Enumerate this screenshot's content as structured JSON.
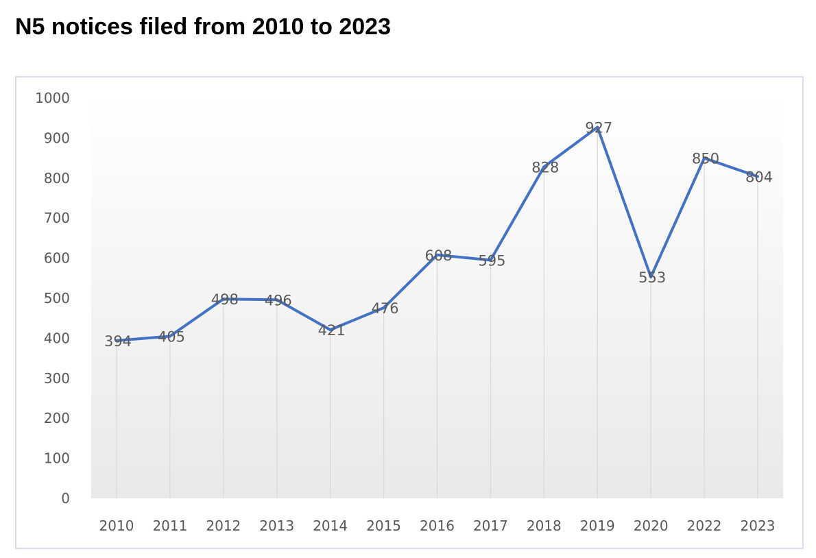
{
  "title": "N5 notices filed from 2010 to 2023",
  "chart_data": {
    "type": "line",
    "title": "N5 notices filed from 2010 to 2023",
    "categories": [
      "2010",
      "2011",
      "2012",
      "2013",
      "2014",
      "2015",
      "2016",
      "2017",
      "2018",
      "2019",
      "2020",
      "2022",
      "2023"
    ],
    "series": [
      {
        "values": [
          394,
          405,
          498,
          496,
          421,
          476,
          608,
          595,
          828,
          927,
          553,
          850,
          804
        ]
      }
    ],
    "xlabel": "",
    "ylabel": "",
    "ylim": [
      0,
      1000
    ],
    "yticks": [
      0,
      100,
      200,
      300,
      400,
      500,
      600,
      700,
      800,
      900,
      1000
    ],
    "grid": "vertical drop lines at each category",
    "legend": "none",
    "data_labels": true,
    "colors": {
      "line": "#4472c4",
      "grid": "#d9d9d9",
      "text": "#595959",
      "frame": "#d7dde8",
      "plot_gradient_top": "#ffffff",
      "plot_gradient_bottom": "#e9e9e9"
    }
  }
}
